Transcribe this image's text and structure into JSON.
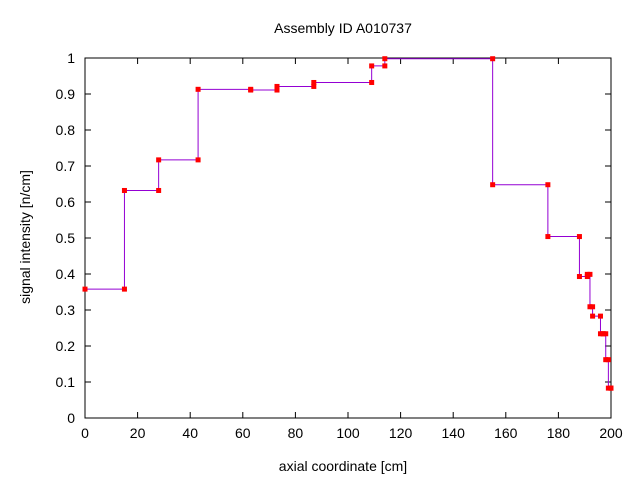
{
  "chart_data": {
    "type": "line",
    "title": "Assembly ID A010737",
    "xlabel": "axial coordinate [cm]",
    "ylabel": "signal intensity [n/cm]",
    "xlim": [
      0,
      200
    ],
    "ylim": [
      0,
      1
    ],
    "xticks": [
      0,
      20,
      40,
      60,
      80,
      100,
      120,
      140,
      160,
      180,
      200
    ],
    "yticks": [
      0,
      0.1,
      0.2,
      0.3,
      0.4,
      0.5,
      0.6,
      0.7,
      0.8,
      0.9,
      1
    ],
    "grid": false,
    "legend": "none",
    "step": "post",
    "series": [
      {
        "line_color": "#9400d3",
        "marker_color": "#ff0000",
        "x": [
          0,
          15,
          28,
          43,
          63,
          73,
          87,
          109,
          114,
          155,
          176,
          188,
          191,
          192,
          193,
          196,
          197,
          198,
          199,
          200
        ],
        "y": [
          0.358,
          0.632,
          0.717,
          0.913,
          0.911,
          0.921,
          0.932,
          0.978,
          0.998,
          0.648,
          0.504,
          0.393,
          0.399,
          0.309,
          0.283,
          0.234,
          0.234,
          0.162,
          0.083,
          0.083
        ]
      }
    ]
  }
}
